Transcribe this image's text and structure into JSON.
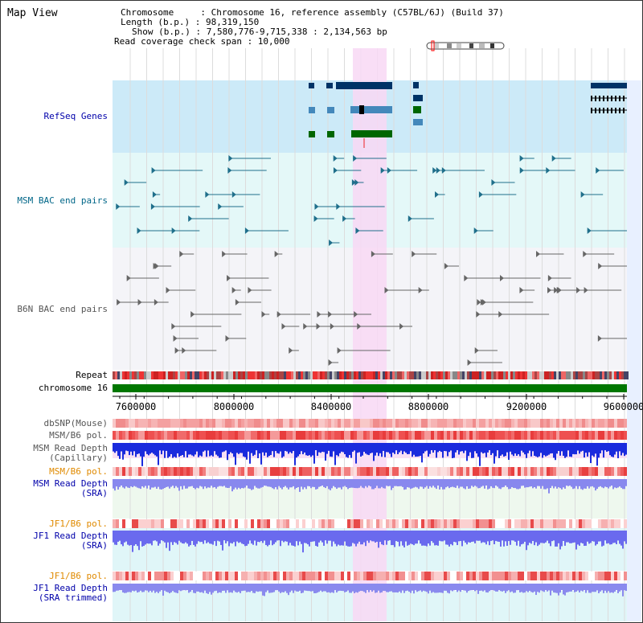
{
  "title": "Map View",
  "info": {
    "chromosome": "Chromosome     : Chromosome 16, reference assembly (C57BL/6J) (Build 37)",
    "length": "Length (b.p.) : 98,319,150",
    "show": "Show (b.p.) : 7,580,776-9,715,338 : 2,134,563 bp",
    "coverage": "Read coverage check span : 10,000"
  },
  "tracks": {
    "refseq": "RefSeq Genes",
    "msm_bac": "MSM BAC end pairs",
    "b6n_bac": "B6N BAC end pairs",
    "repeat": "Repeat",
    "chromosome": "chromosome 16",
    "dbsnp": "dbSNP(Mouse)",
    "msm_b6_pol_1": "MSM/B6 pol.",
    "msm_depth_cap": "MSM Read Depth\n(Capillary)",
    "msm_b6_pol_2": "MSM/B6 pol.",
    "msm_depth_sra": "MSM Read Depth\n(SRA)",
    "jf1_b6_pol_1": "JF1/B6 pol.",
    "jf1_depth_sra": "JF1 Read Depth\n(SRA)",
    "jf1_b6_pol_2": "JF1/B6 pol.",
    "jf1_depth_trim": "JF1 Read Depth\n(SRA trimmed)"
  },
  "axis": {
    "ticks": [
      "7600000",
      "8000000",
      "8400000",
      "8800000",
      "9200000",
      "9600000"
    ]
  },
  "colors": {
    "highlight": "#f8d8f4",
    "refseq_bg": "#cceaf8",
    "msm_bg": "#e4f8f8",
    "chrom": "#007700"
  }
}
